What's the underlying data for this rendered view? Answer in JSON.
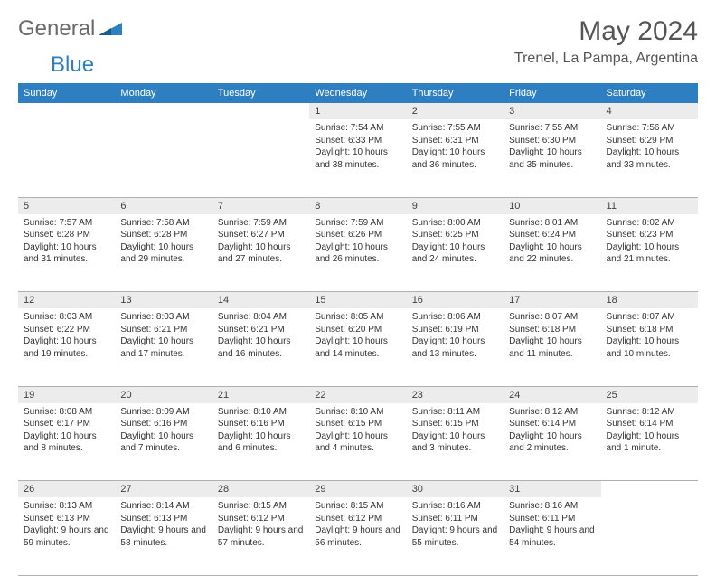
{
  "logo": {
    "text1": "General",
    "text2": "Blue"
  },
  "title": "May 2024",
  "location": "Trenel, La Pampa, Argentina",
  "header_bg": "#2d7fc1",
  "header_fg": "#ffffff",
  "daynum_bg": "#ececec",
  "weekdays": [
    "Sunday",
    "Monday",
    "Tuesday",
    "Wednesday",
    "Thursday",
    "Friday",
    "Saturday"
  ],
  "weeks": [
    [
      null,
      null,
      null,
      {
        "n": "1",
        "sr": "7:54 AM",
        "ss": "6:33 PM",
        "dl": "10 hours and 38 minutes."
      },
      {
        "n": "2",
        "sr": "7:55 AM",
        "ss": "6:31 PM",
        "dl": "10 hours and 36 minutes."
      },
      {
        "n": "3",
        "sr": "7:55 AM",
        "ss": "6:30 PM",
        "dl": "10 hours and 35 minutes."
      },
      {
        "n": "4",
        "sr": "7:56 AM",
        "ss": "6:29 PM",
        "dl": "10 hours and 33 minutes."
      }
    ],
    [
      {
        "n": "5",
        "sr": "7:57 AM",
        "ss": "6:28 PM",
        "dl": "10 hours and 31 minutes."
      },
      {
        "n": "6",
        "sr": "7:58 AM",
        "ss": "6:28 PM",
        "dl": "10 hours and 29 minutes."
      },
      {
        "n": "7",
        "sr": "7:59 AM",
        "ss": "6:27 PM",
        "dl": "10 hours and 27 minutes."
      },
      {
        "n": "8",
        "sr": "7:59 AM",
        "ss": "6:26 PM",
        "dl": "10 hours and 26 minutes."
      },
      {
        "n": "9",
        "sr": "8:00 AM",
        "ss": "6:25 PM",
        "dl": "10 hours and 24 minutes."
      },
      {
        "n": "10",
        "sr": "8:01 AM",
        "ss": "6:24 PM",
        "dl": "10 hours and 22 minutes."
      },
      {
        "n": "11",
        "sr": "8:02 AM",
        "ss": "6:23 PM",
        "dl": "10 hours and 21 minutes."
      }
    ],
    [
      {
        "n": "12",
        "sr": "8:03 AM",
        "ss": "6:22 PM",
        "dl": "10 hours and 19 minutes."
      },
      {
        "n": "13",
        "sr": "8:03 AM",
        "ss": "6:21 PM",
        "dl": "10 hours and 17 minutes."
      },
      {
        "n": "14",
        "sr": "8:04 AM",
        "ss": "6:21 PM",
        "dl": "10 hours and 16 minutes."
      },
      {
        "n": "15",
        "sr": "8:05 AM",
        "ss": "6:20 PM",
        "dl": "10 hours and 14 minutes."
      },
      {
        "n": "16",
        "sr": "8:06 AM",
        "ss": "6:19 PM",
        "dl": "10 hours and 13 minutes."
      },
      {
        "n": "17",
        "sr": "8:07 AM",
        "ss": "6:18 PM",
        "dl": "10 hours and 11 minutes."
      },
      {
        "n": "18",
        "sr": "8:07 AM",
        "ss": "6:18 PM",
        "dl": "10 hours and 10 minutes."
      }
    ],
    [
      {
        "n": "19",
        "sr": "8:08 AM",
        "ss": "6:17 PM",
        "dl": "10 hours and 8 minutes."
      },
      {
        "n": "20",
        "sr": "8:09 AM",
        "ss": "6:16 PM",
        "dl": "10 hours and 7 minutes."
      },
      {
        "n": "21",
        "sr": "8:10 AM",
        "ss": "6:16 PM",
        "dl": "10 hours and 6 minutes."
      },
      {
        "n": "22",
        "sr": "8:10 AM",
        "ss": "6:15 PM",
        "dl": "10 hours and 4 minutes."
      },
      {
        "n": "23",
        "sr": "8:11 AM",
        "ss": "6:15 PM",
        "dl": "10 hours and 3 minutes."
      },
      {
        "n": "24",
        "sr": "8:12 AM",
        "ss": "6:14 PM",
        "dl": "10 hours and 2 minutes."
      },
      {
        "n": "25",
        "sr": "8:12 AM",
        "ss": "6:14 PM",
        "dl": "10 hours and 1 minute."
      }
    ],
    [
      {
        "n": "26",
        "sr": "8:13 AM",
        "ss": "6:13 PM",
        "dl": "9 hours and 59 minutes."
      },
      {
        "n": "27",
        "sr": "8:14 AM",
        "ss": "6:13 PM",
        "dl": "9 hours and 58 minutes."
      },
      {
        "n": "28",
        "sr": "8:15 AM",
        "ss": "6:12 PM",
        "dl": "9 hours and 57 minutes."
      },
      {
        "n": "29",
        "sr": "8:15 AM",
        "ss": "6:12 PM",
        "dl": "9 hours and 56 minutes."
      },
      {
        "n": "30",
        "sr": "8:16 AM",
        "ss": "6:11 PM",
        "dl": "9 hours and 55 minutes."
      },
      {
        "n": "31",
        "sr": "8:16 AM",
        "ss": "6:11 PM",
        "dl": "9 hours and 54 minutes."
      },
      null
    ]
  ],
  "labels": {
    "sunrise": "Sunrise:",
    "sunset": "Sunset:",
    "daylight": "Daylight:"
  }
}
